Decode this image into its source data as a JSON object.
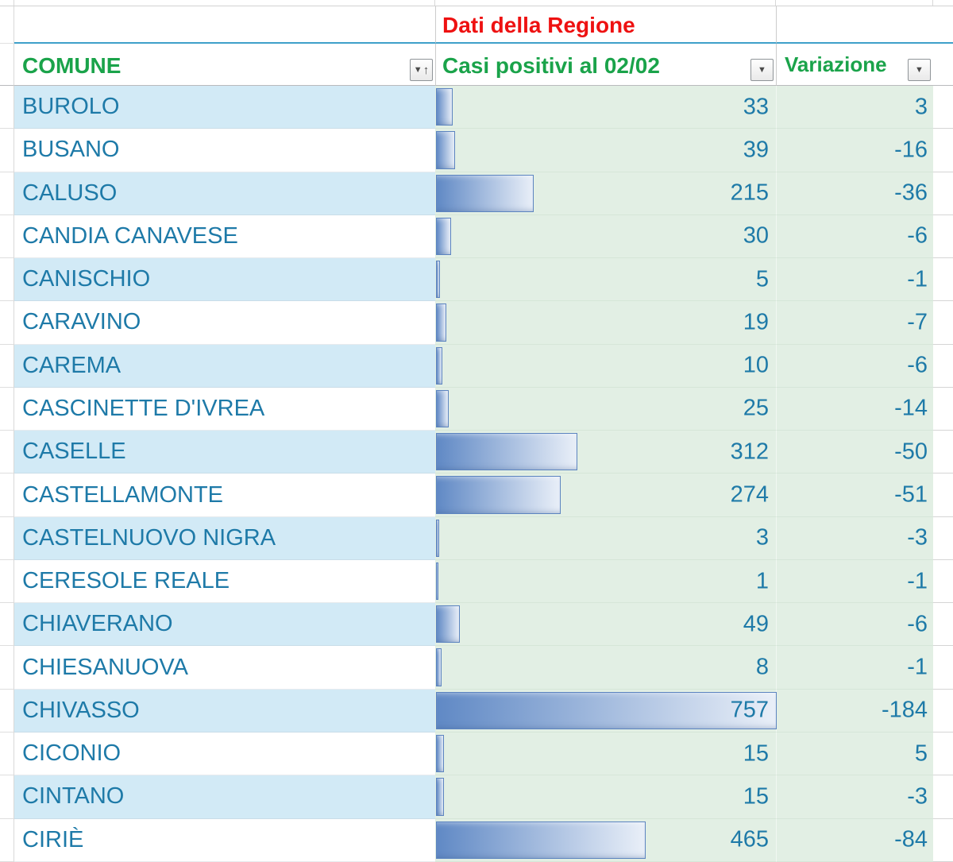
{
  "title": "Dati della Regione",
  "header": {
    "comune_label": "COMUNE",
    "casi_label": "Casi positivi al 02/02",
    "variazione_label": "Variazione"
  },
  "icons": {
    "comune_filter": "sort-ascending-filter-icon",
    "casi_filter": "filter-dropdown-icon",
    "variazione_filter": "filter-dropdown-icon",
    "glyph_dropdown": "▼",
    "glyph_sort_up": "↑"
  },
  "rows": [
    {
      "comune": "BUROLO",
      "casi": 33,
      "variazione": "3"
    },
    {
      "comune": "BUSANO",
      "casi": 39,
      "variazione": "-16"
    },
    {
      "comune": "CALUSO",
      "casi": 215,
      "variazione": "-36"
    },
    {
      "comune": "CANDIA CANAVESE",
      "casi": 30,
      "variazione": "-6"
    },
    {
      "comune": "CANISCHIO",
      "casi": 5,
      "variazione": "-1"
    },
    {
      "comune": "CARAVINO",
      "casi": 19,
      "variazione": "-7"
    },
    {
      "comune": "CAREMA",
      "casi": 10,
      "variazione": "-6"
    },
    {
      "comune": "CASCINETTE D'IVREA",
      "casi": 25,
      "variazione": "-14"
    },
    {
      "comune": "CASELLE",
      "casi": 312,
      "variazione": "-50"
    },
    {
      "comune": "CASTELLAMONTE",
      "casi": 274,
      "variazione": "-51"
    },
    {
      "comune": "CASTELNUOVO NIGRA",
      "casi": 3,
      "variazione": "-3"
    },
    {
      "comune": "CERESOLE REALE",
      "casi": 1,
      "variazione": "-1"
    },
    {
      "comune": "CHIAVERANO",
      "casi": 49,
      "variazione": "-6"
    },
    {
      "comune": "CHIESANUOVA",
      "casi": 8,
      "variazione": "-1"
    },
    {
      "comune": "CHIVASSO",
      "casi": 757,
      "variazione": "-184"
    },
    {
      "comune": "CICONIO",
      "casi": 15,
      "variazione": "5"
    },
    {
      "comune": "CINTANO",
      "casi": 15,
      "variazione": "-3"
    },
    {
      "comune": "CIRIÈ",
      "casi": 465,
      "variazione": "-84"
    }
  ],
  "colors": {
    "teal_text": "#1e7aa8",
    "green_header": "#1aa34a",
    "red_title": "#ee1111",
    "row_alt_blue": "#d2eaf6",
    "green_background": "#e2efe4",
    "bar_gradient_start": "#6089c5",
    "bar_gradient_end": "#e9eff8",
    "bar_border": "#5c84c0",
    "blue_divider": "#3fa0ca"
  }
}
